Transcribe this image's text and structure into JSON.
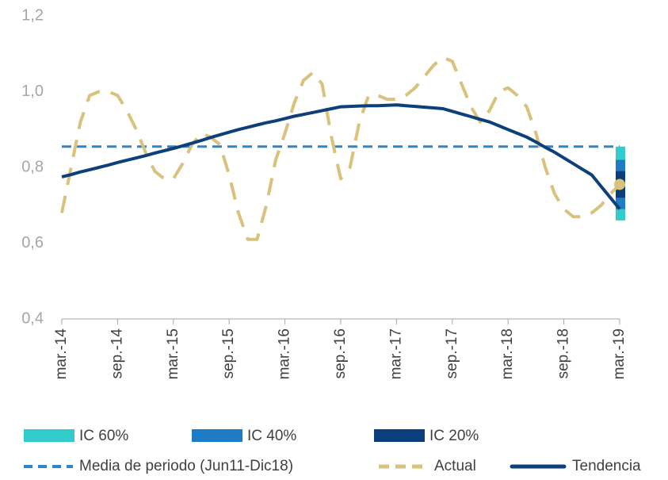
{
  "chart_data": {
    "type": "line",
    "categories": [
      "mar.-14",
      null,
      null,
      null,
      null,
      null,
      "sep.-14",
      null,
      null,
      null,
      null,
      null,
      "mar.-15",
      null,
      null,
      null,
      null,
      null,
      "sep.-15",
      null,
      null,
      null,
      null,
      null,
      "mar.-16",
      null,
      null,
      null,
      null,
      null,
      "sep.-16",
      null,
      null,
      null,
      null,
      null,
      "mar.-17",
      null,
      null,
      null,
      null,
      null,
      "sep.-17",
      null,
      null,
      null,
      null,
      null,
      "mar.-18",
      null,
      null,
      null,
      null,
      null,
      "sep.-18",
      null,
      null,
      null,
      null,
      null,
      "mar.-19"
    ],
    "ylim": [
      0.4,
      1.2
    ],
    "yticks": [
      {
        "value": 0.4,
        "label": "0,4"
      },
      {
        "value": 0.6,
        "label": "0,6"
      },
      {
        "value": 0.8,
        "label": "0,8"
      },
      {
        "value": 1.0,
        "label": "1,0"
      },
      {
        "value": 1.2,
        "label": "1,2"
      }
    ],
    "bands": [
      {
        "name": "IC 60%",
        "color": "#33cccc",
        "range": [
          0.66,
          0.855
        ]
      },
      {
        "name": "IC 40%",
        "color": "#1f7bc4",
        "range": [
          0.69,
          0.82
        ]
      },
      {
        "name": "IC 20%",
        "color": "#0a3f7c",
        "range": [
          0.72,
          0.79
        ]
      }
    ],
    "mean_line": {
      "name": "Media de periodo (Jun11-Dic18)",
      "color": "#2e86c9",
      "value": 0.855
    },
    "series": [
      {
        "name": "Actual",
        "color": "#d9c27d",
        "dashed": true,
        "values": [
          0.68,
          0.8,
          0.92,
          0.99,
          1.0,
          1.0,
          0.99,
          0.95,
          0.9,
          0.84,
          0.79,
          0.77,
          0.77,
          0.81,
          0.86,
          0.89,
          0.88,
          0.86,
          0.78,
          0.68,
          0.61,
          0.61,
          0.7,
          0.82,
          0.89,
          0.97,
          1.03,
          1.05,
          1.02,
          0.88,
          0.77,
          0.8,
          0.92,
          0.99,
          0.99,
          0.98,
          0.98,
          0.99,
          1.01,
          1.04,
          1.07,
          1.09,
          1.08,
          1.02,
          0.96,
          0.92,
          0.95,
          1.0,
          1.01,
          0.99,
          0.96,
          0.89,
          0.8,
          0.73,
          0.69,
          0.67,
          0.67,
          0.68,
          0.7,
          0.73,
          0.755
        ]
      },
      {
        "name": "Tendencia",
        "color": "#0d3f7a",
        "dashed": false,
        "values": [
          0.775,
          0.781,
          0.788,
          0.794,
          0.8,
          0.806,
          0.813,
          0.819,
          0.825,
          0.831,
          0.838,
          0.844,
          0.85,
          0.857,
          0.864,
          0.871,
          0.879,
          0.886,
          0.893,
          0.9,
          0.906,
          0.912,
          0.918,
          0.923,
          0.929,
          0.935,
          0.94,
          0.945,
          0.95,
          0.955,
          0.96,
          0.961,
          0.962,
          0.963,
          0.963,
          0.964,
          0.965,
          0.963,
          0.961,
          0.959,
          0.957,
          0.955,
          0.948,
          0.941,
          0.934,
          0.927,
          0.92,
          0.91,
          0.9,
          0.89,
          0.88,
          0.867,
          0.853,
          0.84,
          0.825,
          0.81,
          0.795,
          0.78,
          0.75,
          0.72,
          0.69
        ]
      }
    ]
  }
}
